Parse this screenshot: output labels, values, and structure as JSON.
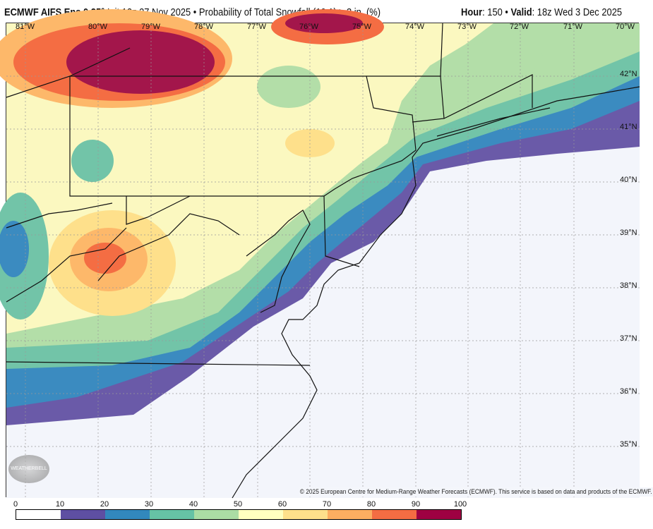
{
  "header": {
    "model": "ECMWF AIFS Ens 0.25°",
    "init": "Init 12z 27 Nov 2025",
    "separator": "•",
    "product": "Probability of Total Snowfall (10:1) ≥ 3 in. (%)",
    "hour_label": "Hour",
    "hour_value": ": 150",
    "valid_label": "Valid",
    "valid_value": ": 18z Wed 3 Dec 2025"
  },
  "map": {
    "longitude_labels": [
      "81°W",
      "80°W",
      "79°W",
      "78°W",
      "77°W",
      "76°W",
      "75°W",
      "74°W",
      "73°W",
      "72°W",
      "71°W",
      "70°W"
    ],
    "latitude_labels": [
      "42°N",
      "41°N",
      "40°N",
      "39°N",
      "38°N",
      "37°N",
      "36°N",
      "35°N"
    ],
    "copyright": "© 2025 European Centre for Medium-Range Weather Forecasts (ECMWF). This service is based on data and products of the ECMWF.",
    "logo": "WeatherBELL"
  },
  "colorbar": {
    "ticks": [
      "0",
      "10",
      "20",
      "30",
      "40",
      "50",
      "60",
      "70",
      "80",
      "90",
      "100"
    ],
    "colors": [
      "#ffffff",
      "#5e4fa2",
      "#3288bd",
      "#66c2a5",
      "#abdda4",
      "#ffffbf",
      "#fee08b",
      "#fdae61",
      "#f46d43",
      "#9e0142"
    ]
  }
}
